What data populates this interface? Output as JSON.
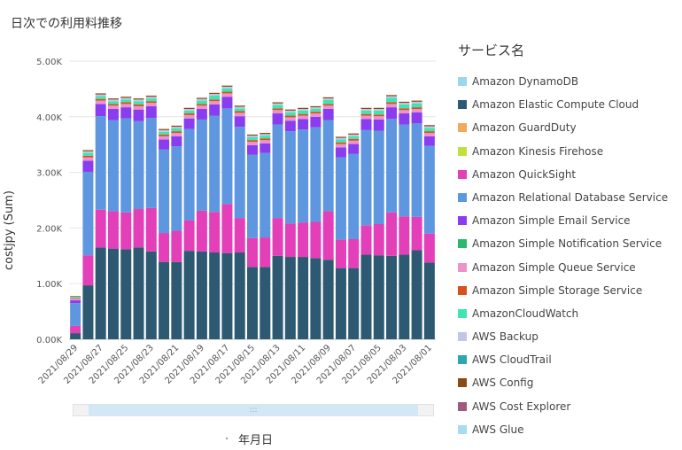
{
  "title": "日次での利用料推移",
  "legend_title": "サービス名",
  "colors": {
    "Amazon DynamoDB": "#98d7ee",
    "Amazon Elastic Compute Cloud": "#2d5a72",
    "Amazon GuardDuty": "#f3a95a",
    "Amazon Kinesis Firehose": "#c2e03c",
    "Amazon QuickSight": "#e23fb9",
    "Amazon Relational Database Service": "#5f96e0",
    "Amazon Simple Email Service": "#8a3dee",
    "Amazon Simple Notification Service": "#2ab86a",
    "Amazon Simple Queue Service": "#ec93cc",
    "Amazon Simple Storage Service": "#d8501e",
    "AmazonCloudWatch": "#3de6b0",
    "AWS Backup": "#c2c6e8",
    "AWS CloudTrail": "#2aa7b0",
    "AWS Config": "#8a4b14",
    "AWS Cost Explorer": "#a05a7e",
    "AWS Glue": "#a7dcf2"
  },
  "scrollbar": {
    "grip": ":::"
  },
  "chart_data": {
    "type": "bar",
    "stacked": true,
    "title": "日次での利用料推移",
    "xlabel": "年月日",
    "ylabel": "costjpy (Sum)",
    "ylim": [
      0,
      5000
    ],
    "yticks": [
      "0.00K",
      "1.00K",
      "2.00K",
      "3.00K",
      "4.00K",
      "5.00K"
    ],
    "grid": true,
    "legend_position": "right",
    "categories": [
      "2021/08/29",
      "2021/08/28",
      "2021/08/27",
      "2021/08/26",
      "2021/08/25",
      "2021/08/24",
      "2021/08/23",
      "2021/08/22",
      "2021/08/21",
      "2021/08/20",
      "2021/08/19",
      "2021/08/18",
      "2021/08/17",
      "2021/08/16",
      "2021/08/15",
      "2021/08/14",
      "2021/08/13",
      "2021/08/12",
      "2021/08/11",
      "2021/08/10",
      "2021/08/09",
      "2021/08/08",
      "2021/08/07",
      "2021/08/06",
      "2021/08/05",
      "2021/08/04",
      "2021/08/03",
      "2021/08/02",
      "2021/08/01"
    ],
    "xtick_labels": [
      "2021/08/29",
      "2021/08/27",
      "2021/08/25",
      "2021/08/23",
      "2021/08/21",
      "2021/08/19",
      "2021/08/17",
      "2021/08/15",
      "2021/08/13",
      "2021/08/11",
      "2021/08/09",
      "2021/08/07",
      "2021/08/05",
      "2021/08/03",
      "2021/08/01"
    ],
    "series": [
      {
        "name": "Amazon DynamoDB",
        "values": [
          0,
          0,
          0,
          0,
          0,
          0,
          0,
          0,
          0,
          0,
          0,
          0,
          0,
          0,
          0,
          0,
          0,
          0,
          0,
          0,
          0,
          0,
          0,
          0,
          0,
          0,
          0,
          0,
          0
        ]
      },
      {
        "name": "Amazon Elastic Compute Cloud",
        "values": [
          110,
          970,
          1650,
          1630,
          1620,
          1650,
          1580,
          1390,
          1390,
          1590,
          1580,
          1560,
          1550,
          1560,
          1300,
          1300,
          1500,
          1480,
          1480,
          1460,
          1430,
          1280,
          1280,
          1520,
          1510,
          1500,
          1520,
          1600,
          1380
        ]
      },
      {
        "name": "Amazon GuardDuty",
        "values": [
          0,
          0,
          0,
          0,
          0,
          0,
          0,
          0,
          0,
          0,
          0,
          0,
          0,
          0,
          0,
          0,
          0,
          0,
          0,
          0,
          0,
          0,
          0,
          0,
          0,
          0,
          0,
          0,
          0
        ]
      },
      {
        "name": "Amazon Kinesis Firehose",
        "values": [
          0,
          0,
          0,
          0,
          0,
          0,
          0,
          0,
          0,
          0,
          0,
          0,
          0,
          0,
          0,
          0,
          0,
          0,
          0,
          0,
          0,
          0,
          0,
          0,
          0,
          0,
          0,
          0,
          0
        ]
      },
      {
        "name": "Amazon QuickSight",
        "values": [
          130,
          540,
          680,
          670,
          660,
          690,
          780,
          520,
          560,
          550,
          730,
          730,
          880,
          620,
          520,
          530,
          680,
          600,
          620,
          650,
          870,
          510,
          520,
          530,
          560,
          780,
          690,
          600,
          520
        ]
      },
      {
        "name": "Amazon Relational Database Service",
        "values": [
          410,
          1500,
          1680,
          1640,
          1690,
          1580,
          1620,
          1500,
          1520,
          1640,
          1640,
          1730,
          1720,
          1640,
          1500,
          1520,
          1680,
          1660,
          1670,
          1700,
          1640,
          1480,
          1530,
          1710,
          1680,
          1680,
          1650,
          1680,
          1580
        ]
      },
      {
        "name": "Amazon Simple Email Service",
        "values": [
          50,
          200,
          220,
          200,
          200,
          210,
          210,
          180,
          180,
          190,
          190,
          200,
          210,
          190,
          170,
          170,
          200,
          190,
          190,
          190,
          200,
          180,
          180,
          200,
          200,
          210,
          200,
          200,
          170
        ]
      },
      {
        "name": "Amazon Simple Notification Service",
        "values": [
          0,
          0,
          0,
          0,
          0,
          0,
          0,
          0,
          0,
          0,
          0,
          0,
          0,
          0,
          0,
          0,
          0,
          0,
          0,
          0,
          0,
          0,
          0,
          0,
          0,
          0,
          0,
          0,
          0
        ]
      },
      {
        "name": "Amazon Simple Queue Service",
        "values": [
          30,
          60,
          60,
          60,
          60,
          60,
          60,
          60,
          60,
          60,
          60,
          60,
          60,
          60,
          60,
          60,
          60,
          60,
          60,
          60,
          60,
          60,
          60,
          60,
          60,
          60,
          60,
          60,
          60
        ]
      },
      {
        "name": "Amazon Simple Storage Service",
        "values": [
          10,
          30,
          30,
          30,
          30,
          30,
          30,
          30,
          30,
          30,
          30,
          30,
          30,
          30,
          30,
          30,
          30,
          30,
          30,
          30,
          30,
          30,
          30,
          30,
          30,
          30,
          30,
          30,
          30
        ]
      },
      {
        "name": "AmazonCloudWatch",
        "values": [
          20,
          50,
          50,
          50,
          50,
          60,
          50,
          50,
          50,
          50,
          60,
          70,
          60,
          50,
          50,
          50,
          60,
          60,
          60,
          50,
          70,
          50,
          50,
          60,
          70,
          80,
          70,
          70,
          60
        ]
      },
      {
        "name": "AWS Backup",
        "values": [
          10,
          30,
          30,
          30,
          30,
          30,
          30,
          30,
          30,
          30,
          30,
          30,
          30,
          30,
          30,
          30,
          30,
          30,
          30,
          30,
          30,
          30,
          30,
          30,
          30,
          30,
          30,
          30,
          30
        ]
      },
      {
        "name": "AWS CloudTrail",
        "values": [
          0,
          0,
          0,
          0,
          0,
          0,
          0,
          0,
          0,
          0,
          0,
          0,
          0,
          0,
          0,
          0,
          0,
          0,
          0,
          0,
          0,
          0,
          0,
          0,
          0,
          0,
          0,
          0,
          0
        ]
      },
      {
        "name": "AWS Config",
        "values": [
          10,
          20,
          20,
          20,
          20,
          20,
          20,
          20,
          20,
          20,
          20,
          20,
          20,
          20,
          20,
          20,
          20,
          20,
          20,
          20,
          20,
          20,
          20,
          20,
          20,
          20,
          20,
          20,
          20
        ]
      },
      {
        "name": "AWS Cost Explorer",
        "values": [
          0,
          0,
          0,
          0,
          0,
          0,
          0,
          0,
          0,
          0,
          0,
          0,
          0,
          0,
          0,
          0,
          0,
          0,
          0,
          0,
          0,
          0,
          0,
          0,
          0,
          0,
          0,
          0,
          0
        ]
      },
      {
        "name": "AWS Glue",
        "values": [
          0,
          0,
          0,
          0,
          0,
          0,
          0,
          0,
          0,
          0,
          0,
          0,
          0,
          0,
          0,
          0,
          0,
          0,
          0,
          0,
          0,
          0,
          0,
          0,
          0,
          0,
          0,
          0,
          0
        ]
      }
    ]
  }
}
